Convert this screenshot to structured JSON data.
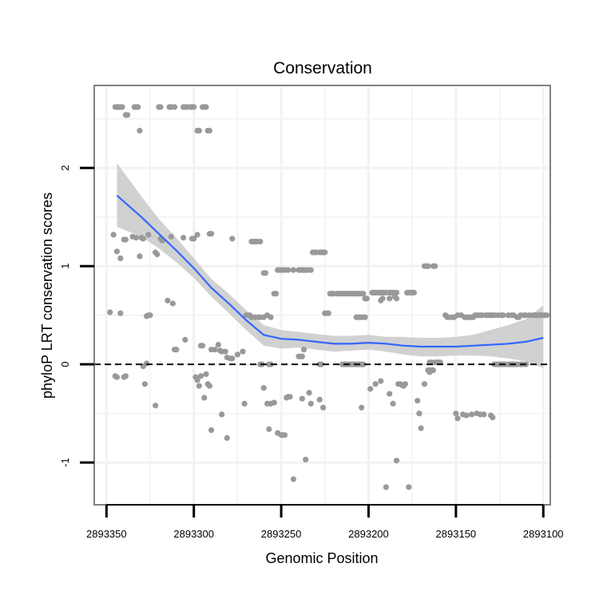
{
  "chart_data": {
    "type": "scatter",
    "title": "Conservation",
    "xlabel": "Genomic Position",
    "ylabel": "phyloP LRT conservation scores",
    "x_reversed": true,
    "xlim": [
      2893357,
      2893096
    ],
    "ylim": [
      -1.43,
      2.84
    ],
    "xticks": [
      2893350,
      2893300,
      2893250,
      2893200,
      2893150,
      2893100
    ],
    "xtick_labels": [
      "2893350",
      "2893300",
      "2893250",
      "2893200",
      "2893150",
      "2893100"
    ],
    "yticks": [
      -1,
      0,
      1,
      2
    ],
    "ytick_labels": [
      "-1",
      "0",
      "1",
      "2"
    ],
    "reference_line": {
      "y": 0,
      "style": "dashed"
    },
    "grid": true,
    "colors": {
      "points": "#999999",
      "smooth": "#3366FF",
      "ribbon": "#CCCCCC",
      "panel_border": "#808080",
      "grid": "#F2F2F2"
    },
    "points": [
      [
        2893345,
        2.62
      ],
      [
        2893344,
        2.62
      ],
      [
        2893343,
        2.62
      ],
      [
        2893342,
        2.62
      ],
      [
        2893341,
        2.62
      ],
      [
        2893339,
        2.54
      ],
      [
        2893338,
        2.54
      ],
      [
        2893334,
        2.62
      ],
      [
        2893333,
        2.62
      ],
      [
        2893332,
        2.62
      ],
      [
        2893331,
        2.38
      ],
      [
        2893320,
        2.62
      ],
      [
        2893319,
        2.62
      ],
      [
        2893314,
        2.62
      ],
      [
        2893313,
        2.62
      ],
      [
        2893311,
        2.62
      ],
      [
        2893306,
        2.62
      ],
      [
        2893305,
        2.62
      ],
      [
        2893304,
        2.62
      ],
      [
        2893302,
        2.62
      ],
      [
        2893301,
        2.62
      ],
      [
        2893300,
        2.62
      ],
      [
        2893298,
        2.38
      ],
      [
        2893297,
        2.38
      ],
      [
        2893295,
        2.62
      ],
      [
        2893294,
        2.62
      ],
      [
        2893293,
        2.62
      ],
      [
        2893292,
        2.38
      ],
      [
        2893291,
        2.38
      ],
      [
        2893346,
        1.32
      ],
      [
        2893344,
        1.15
      ],
      [
        2893342,
        1.08
      ],
      [
        2893340,
        1.27
      ],
      [
        2893339,
        1.27
      ],
      [
        2893335,
        1.3
      ],
      [
        2893333,
        1.29
      ],
      [
        2893331,
        1.1
      ],
      [
        2893330,
        1.29
      ],
      [
        2893329,
        1.28
      ],
      [
        2893326,
        1.32
      ],
      [
        2893322,
        1.14
      ],
      [
        2893321,
        1.12
      ],
      [
        2893319,
        1.28
      ],
      [
        2893318,
        1.26
      ],
      [
        2893313,
        1.3
      ],
      [
        2893306,
        1.29
      ],
      [
        2893301,
        1.28
      ],
      [
        2893300,
        1.28
      ],
      [
        2893298,
        1.32
      ],
      [
        2893291,
        1.33
      ],
      [
        2893290,
        1.33
      ],
      [
        2893278,
        1.28
      ],
      [
        2893267,
        1.25
      ],
      [
        2893266,
        1.25
      ],
      [
        2893265,
        1.25
      ],
      [
        2893264,
        1.25
      ],
      [
        2893262,
        1.25
      ],
      [
        2893348,
        0.53
      ],
      [
        2893342,
        0.52
      ],
      [
        2893327,
        0.49
      ],
      [
        2893326,
        0.5
      ],
      [
        2893325,
        0.5
      ],
      [
        2893315,
        0.65
      ],
      [
        2893312,
        0.62
      ],
      [
        2893311,
        0.15
      ],
      [
        2893310,
        0.15
      ],
      [
        2893305,
        0.25
      ],
      [
        2893296,
        0.19
      ],
      [
        2893295,
        0.19
      ],
      [
        2893290,
        0.15
      ],
      [
        2893288,
        0.15
      ],
      [
        2893286,
        0.2
      ],
      [
        2893285,
        0.14
      ],
      [
        2893284,
        0.13
      ],
      [
        2893282,
        0.13
      ],
      [
        2893281,
        0.07
      ],
      [
        2893279,
        0.06
      ],
      [
        2893278,
        0.06
      ],
      [
        2893275,
        0.1
      ],
      [
        2893272,
        0.13
      ],
      [
        2893268,
        0.5
      ],
      [
        2893267,
        0.48
      ],
      [
        2893265,
        0.48
      ],
      [
        2893263,
        0.48
      ],
      [
        2893262,
        0.48
      ],
      [
        2893260,
        0.48
      ],
      [
        2893258,
        0.5
      ],
      [
        2893256,
        0.48
      ],
      [
        2893254,
        0.72
      ],
      [
        2893253,
        0.72
      ],
      [
        2893252,
        0.96
      ],
      [
        2893251,
        0.96
      ],
      [
        2893250,
        0.96
      ],
      [
        2893249,
        0.96
      ],
      [
        2893248,
        0.96
      ],
      [
        2893246,
        0.96
      ],
      [
        2893243,
        0.96
      ],
      [
        2893240,
        0.96
      ],
      [
        2893239,
        0.96
      ],
      [
        2893238,
        0.96
      ],
      [
        2893237,
        0.96
      ],
      [
        2893236,
        0.96
      ],
      [
        2893235,
        0.96
      ],
      [
        2893233,
        0.96
      ],
      [
        2893232,
        1.14
      ],
      [
        2893231,
        1.14
      ],
      [
        2893230,
        1.14
      ],
      [
        2893228,
        1.14
      ],
      [
        2893227,
        1.14
      ],
      [
        2893226,
        1.14
      ],
      [
        2893225,
        1.14
      ],
      [
        2893260,
        0.93
      ],
      [
        2893259,
        0.93
      ],
      [
        2893263,
        0.48
      ],
      [
        2893270,
        0.5
      ],
      [
        2893222,
        0.72
      ],
      [
        2893221,
        0.72
      ],
      [
        2893220,
        0.72
      ],
      [
        2893218,
        0.72
      ],
      [
        2893217,
        0.72
      ],
      [
        2893216,
        0.72
      ],
      [
        2893215,
        0.72
      ],
      [
        2893214,
        0.72
      ],
      [
        2893213,
        0.72
      ],
      [
        2893212,
        0.72
      ],
      [
        2893211,
        0.72
      ],
      [
        2893210,
        0.72
      ],
      [
        2893209,
        0.72
      ],
      [
        2893208,
        0.72
      ],
      [
        2893207,
        0.72
      ],
      [
        2893206,
        0.72
      ],
      [
        2893205,
        0.72
      ],
      [
        2893204,
        0.72
      ],
      [
        2893203,
        0.72
      ],
      [
        2893202,
        0.67
      ],
      [
        2893201,
        0.67
      ],
      [
        2893220,
        0.72
      ],
      [
        2893225,
        0.52
      ],
      [
        2893224,
        0.52
      ],
      [
        2893223,
        0.52
      ],
      [
        2893207,
        0.48
      ],
      [
        2893206,
        0.48
      ],
      [
        2893205,
        0.48
      ],
      [
        2893204,
        0.48
      ],
      [
        2893203,
        0.48
      ],
      [
        2893202,
        0.48
      ],
      [
        2893228,
        0.0
      ],
      [
        2893227,
        0.0
      ],
      [
        2893215,
        0.0
      ],
      [
        2893214,
        0.0
      ],
      [
        2893213,
        0.0
      ],
      [
        2893212,
        0.0
      ],
      [
        2893211,
        0.0
      ],
      [
        2893210,
        0.0
      ],
      [
        2893209,
        0.0
      ],
      [
        2893208,
        0.0
      ],
      [
        2893207,
        0.0
      ],
      [
        2893206,
        0.0
      ],
      [
        2893205,
        0.0
      ],
      [
        2893204,
        0.0
      ],
      [
        2893203,
        0.0
      ],
      [
        2893262,
        0.0
      ],
      [
        2893261,
        0.0
      ],
      [
        2893257,
        0.0
      ],
      [
        2893256,
        0.0
      ],
      [
        2893240,
        0.08
      ],
      [
        2893239,
        0.08
      ],
      [
        2893238,
        0.08
      ],
      [
        2893237,
        0.15
      ],
      [
        2893198,
        0.73
      ],
      [
        2893197,
        0.73
      ],
      [
        2893196,
        0.73
      ],
      [
        2893195,
        0.73
      ],
      [
        2893194,
        0.73
      ],
      [
        2893193,
        0.73
      ],
      [
        2893192,
        0.73
      ],
      [
        2893191,
        0.73
      ],
      [
        2893190,
        0.73
      ],
      [
        2893188,
        0.73
      ],
      [
        2893187,
        0.73
      ],
      [
        2893186,
        0.73
      ],
      [
        2893184,
        0.73
      ],
      [
        2893178,
        0.73
      ],
      [
        2893177,
        0.73
      ],
      [
        2893176,
        0.73
      ],
      [
        2893175,
        0.73
      ],
      [
        2893174,
        0.73
      ],
      [
        2893168,
        1.0
      ],
      [
        2893167,
        1.0
      ],
      [
        2893166,
        1.0
      ],
      [
        2893163,
        1.0
      ],
      [
        2893162,
        1.0
      ],
      [
        2893193,
        0.65
      ],
      [
        2893192,
        0.67
      ],
      [
        2893188,
        0.67
      ],
      [
        2893185,
        0.69
      ],
      [
        2893184,
        0.67
      ],
      [
        2893156,
        0.5
      ],
      [
        2893155,
        0.48
      ],
      [
        2893154,
        0.48
      ],
      [
        2893152,
        0.48
      ],
      [
        2893151,
        0.48
      ],
      [
        2893149,
        0.5
      ],
      [
        2893147,
        0.5
      ],
      [
        2893145,
        0.48
      ],
      [
        2893144,
        0.48
      ],
      [
        2893143,
        0.48
      ],
      [
        2893142,
        0.48
      ],
      [
        2893141,
        0.48
      ],
      [
        2893140,
        0.48
      ],
      [
        2893139,
        0.5
      ],
      [
        2893138,
        0.5
      ],
      [
        2893137,
        0.5
      ],
      [
        2893136,
        0.5
      ],
      [
        2893135,
        0.5
      ],
      [
        2893133,
        0.5
      ],
      [
        2893132,
        0.5
      ],
      [
        2893131,
        0.5
      ],
      [
        2893130,
        0.5
      ],
      [
        2893129,
        0.5
      ],
      [
        2893128,
        0.5
      ],
      [
        2893126,
        0.5
      ],
      [
        2893124,
        0.5
      ],
      [
        2893123,
        0.5
      ],
      [
        2893120,
        0.5
      ],
      [
        2893118,
        0.5
      ],
      [
        2893117,
        0.5
      ],
      [
        2893115,
        0.48
      ],
      [
        2893114,
        0.48
      ],
      [
        2893113,
        0.5
      ],
      [
        2893111,
        0.5
      ],
      [
        2893110,
        0.5
      ],
      [
        2893108,
        0.5
      ],
      [
        2893106,
        0.5
      ],
      [
        2893105,
        0.5
      ],
      [
        2893104,
        0.5
      ],
      [
        2893103,
        0.5
      ],
      [
        2893102,
        0.5
      ],
      [
        2893101,
        0.5
      ],
      [
        2893100,
        0.5
      ],
      [
        2893099,
        0.5
      ],
      [
        2893098,
        0.5
      ],
      [
        2893128,
        0.0
      ],
      [
        2893127,
        0.0
      ],
      [
        2893126,
        0.0
      ],
      [
        2893125,
        0.0
      ],
      [
        2893124,
        0.0
      ],
      [
        2893123,
        0.0
      ],
      [
        2893122,
        0.0
      ],
      [
        2893120,
        0.0
      ],
      [
        2893119,
        0.0
      ],
      [
        2893118,
        0.0
      ],
      [
        2893117,
        0.0
      ],
      [
        2893116,
        0.0
      ],
      [
        2893115,
        0.0
      ],
      [
        2893113,
        0.0
      ],
      [
        2893112,
        0.0
      ],
      [
        2893110,
        0.0
      ],
      [
        2893165,
        0.02
      ],
      [
        2893164,
        0.02
      ],
      [
        2893162,
        0.02
      ],
      [
        2893161,
        0.02
      ],
      [
        2893160,
        0.02
      ],
      [
        2893159,
        0.02
      ],
      [
        2893166,
        -0.06
      ],
      [
        2893165,
        -0.06
      ],
      [
        2893164,
        -0.06
      ],
      [
        2893163,
        -0.06
      ],
      [
        2893345,
        -0.12
      ],
      [
        2893344,
        -0.13
      ],
      [
        2893340,
        -0.13
      ],
      [
        2893339,
        -0.12
      ],
      [
        2893329,
        -0.02
      ],
      [
        2893328,
        -0.2
      ],
      [
        2893327,
        0.01
      ],
      [
        2893322,
        -0.42
      ],
      [
        2893299,
        -0.13
      ],
      [
        2893298,
        -0.16
      ],
      [
        2893297,
        -0.22
      ],
      [
        2893296,
        -0.12
      ],
      [
        2893294,
        -0.34
      ],
      [
        2893293,
        -0.1
      ],
      [
        2893292,
        -0.2
      ],
      [
        2893291,
        -0.22
      ],
      [
        2893290,
        -0.67
      ],
      [
        2893284,
        -0.51
      ],
      [
        2893281,
        -0.75
      ],
      [
        2893271,
        -0.4
      ],
      [
        2893260,
        -0.24
      ],
      [
        2893258,
        -0.4
      ],
      [
        2893257,
        -0.66
      ],
      [
        2893256,
        -0.4
      ],
      [
        2893254,
        -0.39
      ],
      [
        2893252,
        -0.7
      ],
      [
        2893250,
        -0.72
      ],
      [
        2893249,
        -0.72
      ],
      [
        2893248,
        -0.72
      ],
      [
        2893247,
        -0.34
      ],
      [
        2893246,
        -0.33
      ],
      [
        2893245,
        -0.33
      ],
      [
        2893243,
        -1.17
      ],
      [
        2893238,
        -0.35
      ],
      [
        2893236,
        -0.97
      ],
      [
        2893234,
        -0.29
      ],
      [
        2893233,
        -0.4
      ],
      [
        2893228,
        -0.36
      ],
      [
        2893226,
        -0.44
      ],
      [
        2893204,
        -0.44
      ],
      [
        2893199,
        -0.25
      ],
      [
        2893196,
        -0.2
      ],
      [
        2893193,
        -0.17
      ],
      [
        2893190,
        -1.25
      ],
      [
        2893188,
        -0.3
      ],
      [
        2893186,
        -0.4
      ],
      [
        2893184,
        -0.98
      ],
      [
        2893183,
        -0.2
      ],
      [
        2893182,
        -0.2
      ],
      [
        2893181,
        -0.21
      ],
      [
        2893180,
        -0.22
      ],
      [
        2893179,
        -0.2
      ],
      [
        2893177,
        -1.25
      ],
      [
        2893172,
        -0.37
      ],
      [
        2893171,
        -0.5
      ],
      [
        2893170,
        -0.65
      ],
      [
        2893168,
        -0.2
      ],
      [
        2893165,
        -0.08
      ],
      [
        2893150,
        -0.5
      ],
      [
        2893149,
        -0.55
      ],
      [
        2893146,
        -0.51
      ],
      [
        2893144,
        -0.52
      ],
      [
        2893141,
        -0.51
      ],
      [
        2893138,
        -0.5
      ],
      [
        2893136,
        -0.51
      ],
      [
        2893134,
        -0.51
      ],
      [
        2893130,
        -0.52
      ],
      [
        2893129,
        -0.54
      ]
    ],
    "smooth": {
      "x": [
        2893344,
        2893330,
        2893320,
        2893310,
        2893300,
        2893290,
        2893280,
        2893270,
        2893260,
        2893250,
        2893240,
        2893230,
        2893220,
        2893210,
        2893200,
        2893190,
        2893180,
        2893170,
        2893160,
        2893150,
        2893140,
        2893130,
        2893120,
        2893110,
        2893100
      ],
      "y": [
        1.72,
        1.5,
        1.33,
        1.16,
        0.98,
        0.78,
        0.62,
        0.45,
        0.3,
        0.26,
        0.25,
        0.23,
        0.21,
        0.21,
        0.22,
        0.21,
        0.19,
        0.18,
        0.18,
        0.18,
        0.19,
        0.2,
        0.21,
        0.23,
        0.27
      ],
      "lower": [
        1.4,
        1.3,
        1.18,
        1.04,
        0.88,
        0.69,
        0.52,
        0.35,
        0.19,
        0.16,
        0.17,
        0.15,
        0.13,
        0.14,
        0.15,
        0.13,
        0.1,
        0.08,
        0.08,
        0.09,
        0.09,
        0.08,
        0.06,
        0.03,
        -0.04
      ],
      "upper": [
        2.05,
        1.71,
        1.48,
        1.29,
        1.08,
        0.87,
        0.72,
        0.55,
        0.4,
        0.35,
        0.33,
        0.31,
        0.29,
        0.29,
        0.3,
        0.28,
        0.28,
        0.27,
        0.27,
        0.28,
        0.3,
        0.35,
        0.4,
        0.46,
        0.6
      ]
    }
  }
}
